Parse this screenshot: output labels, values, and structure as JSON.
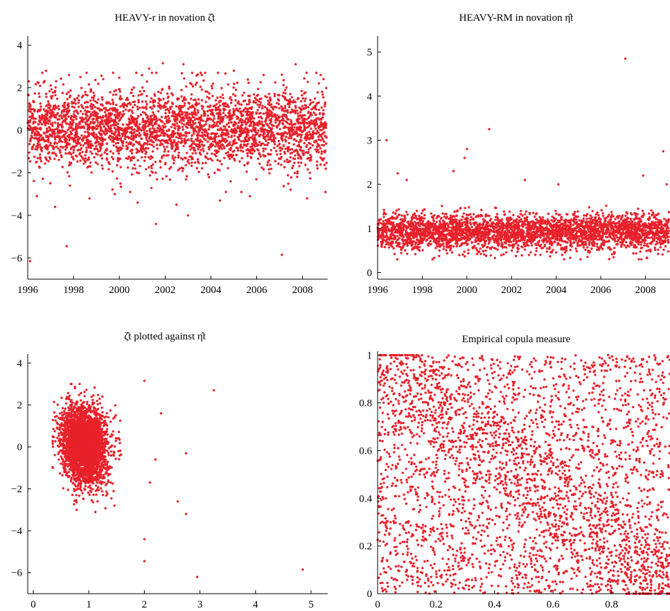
{
  "chart_data": [
    {
      "id": "p1",
      "type": "scatter",
      "title": "HEAVY-r in novation ζ̂t",
      "xlim": [
        1996,
        2009.1
      ],
      "ylim": [
        -7,
        4.3
      ],
      "xticks": [
        1996,
        1998,
        2000,
        2002,
        2004,
        2006,
        2008
      ],
      "xtick_labels": [
        "1996",
        "1998",
        "2000",
        "2002",
        "2004",
        "2006",
        "2008"
      ],
      "yticks": [
        -6,
        -4,
        -2,
        0,
        2,
        4
      ],
      "ytick_labels": [
        "−6",
        "−4",
        "−2",
        "0",
        "2",
        "4"
      ],
      "grid": false,
      "series": [
        {
          "color": "#e8212b",
          "marker": "dot",
          "points": [
            [
              1996.05,
              2.3
            ],
            [
              1996.1,
              -6.15
            ],
            [
              1996.4,
              -3.1
            ],
            [
              1996.8,
              2.8
            ],
            [
              1997.2,
              -3.6
            ],
            [
              1997.7,
              -5.45
            ],
            [
              1997.8,
              2.6
            ],
            [
              1998.3,
              2.5
            ],
            [
              1998.7,
              -3.2
            ],
            [
              1999.3,
              2.4
            ],
            [
              1999.8,
              -3.0
            ],
            [
              2000.8,
              -3.4
            ],
            [
              2001.3,
              2.9
            ],
            [
              2001.6,
              -4.4
            ],
            [
              2001.9,
              3.15
            ],
            [
              2002.5,
              -3.5
            ],
            [
              2002.8,
              3.1
            ],
            [
              2003.0,
              -4.0
            ],
            [
              2003.6,
              2.6
            ],
            [
              2004.4,
              -3.3
            ],
            [
              2005.0,
              2.8
            ],
            [
              2005.7,
              -3.1
            ],
            [
              2006.3,
              2.6
            ],
            [
              2007.1,
              -5.85
            ],
            [
              2007.7,
              3.1
            ],
            [
              2008.2,
              -3.2
            ],
            [
              2008.6,
              2.7
            ],
            [
              2009.0,
              -2.9
            ]
          ],
          "bulk": {
            "n": 3300,
            "x_range": [
              1996,
              2009.05
            ],
            "mean": 0.1,
            "sd": 0.9
          }
        }
      ]
    },
    {
      "id": "p2",
      "type": "scatter",
      "title": "HEAVY-RM in novation η̂t",
      "xlim": [
        1996,
        2009.1
      ],
      "ylim": [
        -0.15,
        5.3
      ],
      "xticks": [
        1996,
        1998,
        2000,
        2002,
        2004,
        2006,
        2008
      ],
      "xtick_labels": [
        "1996",
        "1998",
        "2000",
        "2002",
        "2004",
        "2006",
        "2008"
      ],
      "yticks": [
        0,
        1,
        2,
        3,
        4,
        5
      ],
      "ytick_labels": [
        "0",
        "1",
        "2",
        "3",
        "4",
        "5"
      ],
      "grid": false,
      "series": [
        {
          "color": "#e8212b",
          "marker": "dot",
          "points": [
            [
              1996.4,
              3.0
            ],
            [
              1996.9,
              2.25
            ],
            [
              1997.3,
              2.1
            ],
            [
              1999.4,
              2.3
            ],
            [
              1999.9,
              2.6
            ],
            [
              2000.0,
              2.8
            ],
            [
              2001.0,
              3.25
            ],
            [
              2002.6,
              2.1
            ],
            [
              2004.1,
              2.0
            ],
            [
              2007.1,
              4.85
            ],
            [
              2007.9,
              2.2
            ],
            [
              2008.8,
              2.75
            ],
            [
              2008.95,
              2.0
            ]
          ],
          "bulk": {
            "n": 3300,
            "x_range": [
              1996,
              2009.05
            ],
            "mean": 0.92,
            "sd": 0.2
          }
        }
      ]
    },
    {
      "id": "p3",
      "type": "scatter",
      "title": "ζ̂t plotted against η̂t",
      "xlim": [
        -0.1,
        5.3
      ],
      "ylim": [
        -7,
        4.3
      ],
      "xticks": [
        0,
        1,
        2,
        3,
        4,
        5
      ],
      "xtick_labels": [
        "0",
        "1",
        "2",
        "3",
        "4",
        "5"
      ],
      "yticks": [
        -6,
        -4,
        -2,
        0,
        2,
        4
      ],
      "ytick_labels": [
        "−6",
        "−4",
        "−2",
        "0",
        "2",
        "4"
      ],
      "grid": false,
      "series": [
        {
          "color": "#e8212b",
          "marker": "dot",
          "points": [
            [
              3.25,
              2.7
            ],
            [
              2.0,
              3.15
            ],
            [
              2.75,
              -0.3
            ],
            [
              2.6,
              -2.6
            ],
            [
              2.75,
              -3.2
            ],
            [
              2.0,
              -4.4
            ],
            [
              2.0,
              -5.45
            ],
            [
              2.95,
              -6.2
            ],
            [
              4.85,
              -5.85
            ],
            [
              2.3,
              1.6
            ],
            [
              2.2,
              -0.6
            ],
            [
              2.1,
              -1.7
            ]
          ],
          "bulk": {
            "n": 3300,
            "x_mean": 0.92,
            "x_sd": 0.2,
            "y_mean": 0.1,
            "y_sd": 0.9
          }
        }
      ]
    },
    {
      "id": "p4",
      "type": "scatter",
      "title": "Empirical copula measure",
      "xlim": [
        0,
        1
      ],
      "ylim": [
        0,
        1.005
      ],
      "xticks": [
        0,
        0.2,
        0.4,
        0.6,
        0.8
      ],
      "xtick_labels": [
        "0",
        "0.2",
        "0.4",
        "0.6",
        "0.8"
      ],
      "yticks": [
        0,
        0.2,
        0.4,
        0.6,
        0.8,
        1
      ],
      "ytick_labels": [
        "0",
        "0.2",
        "0.4",
        "0.6",
        "0.8",
        "1"
      ],
      "grid": false,
      "series": [
        {
          "color": "#e8212b",
          "marker": "dot",
          "bulk": {
            "n": 3300,
            "x_range": [
              0,
              1
            ],
            "y_range": [
              0,
              1
            ]
          }
        }
      ]
    }
  ]
}
